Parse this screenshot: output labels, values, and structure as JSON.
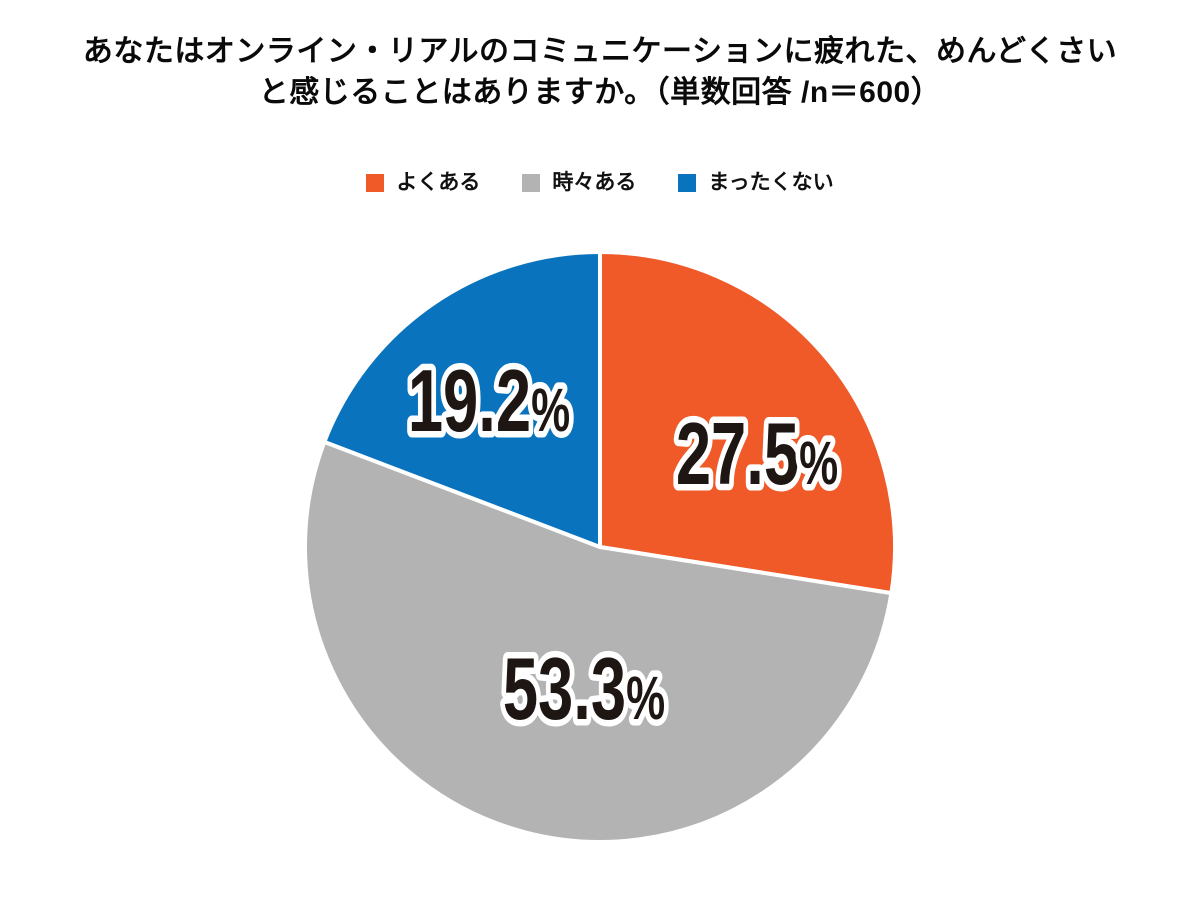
{
  "title": {
    "line1": "あなたはオンライン・リアルのコミュニケーションに疲れた、めんどくさい",
    "line2": "と感じることはありますか。（単数回答 /n＝600）"
  },
  "legend": [
    {
      "label": "よくある",
      "color": "#f05a28"
    },
    {
      "label": "時々ある",
      "color": "#b3b3b3"
    },
    {
      "label": "まったくない",
      "color": "#0a73be"
    }
  ],
  "chart_data": {
    "type": "pie",
    "title": "あなたはオンライン・リアルのコミュニケーションに疲れた、めんどくさいと感じることはありますか。（単数回答 /n＝600）",
    "categories": [
      "よくある",
      "時々ある",
      "まったくない"
    ],
    "values": [
      27.5,
      53.3,
      19.2
    ],
    "colors": [
      "#f05a28",
      "#b3b3b3",
      "#0a73be"
    ],
    "labels": [
      "27.5",
      "53.3",
      "19.2"
    ],
    "percent_symbol": "%",
    "start_angle_deg": 0,
    "direction": "clockwise",
    "legend_position": "top",
    "separator_color": "#ffffff",
    "label_text_color": "#1d1613",
    "label_outline_color": "#ffffff"
  }
}
